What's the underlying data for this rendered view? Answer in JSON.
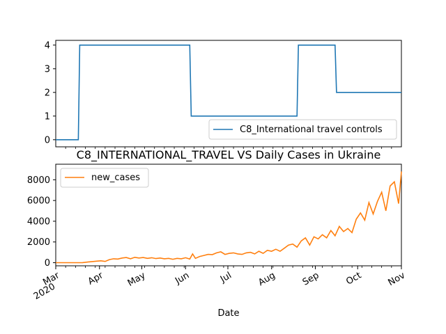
{
  "chart_data": [
    {
      "type": "line",
      "title": "",
      "xlabel": "",
      "ylabel": "",
      "ylim": [
        0,
        4
      ],
      "yticks": [
        "0",
        "1",
        "2",
        "3",
        "4"
      ],
      "grid": false,
      "legend_placement": "lower-right",
      "series": [
        {
          "name": "C8_International travel controls",
          "color": "#1f77b4",
          "x": [
            "2020-03-01",
            "2020-03-17",
            "2020-03-18",
            "2020-06-04",
            "2020-06-05",
            "2020-08-19",
            "2020-08-20",
            "2020-09-15",
            "2020-09-16",
            "2020-11-01"
          ],
          "values": [
            0,
            0,
            4,
            4,
            1,
            1,
            4,
            4,
            2,
            2
          ]
        }
      ]
    },
    {
      "type": "line",
      "title": "C8_INTERNATIONAL_TRAVEL VS Daily Cases in Ukraine",
      "xlabel": "Date",
      "ylabel": "",
      "ylim": [
        -300,
        9500
      ],
      "yticks": [
        "0",
        "2000",
        "4000",
        "6000",
        "8000"
      ],
      "xticks": [
        {
          "label": "Mar",
          "sublabel": "2020",
          "date": "2020-03-01"
        },
        {
          "label": "Apr",
          "date": "2020-04-01"
        },
        {
          "label": "May",
          "date": "2020-05-01"
        },
        {
          "label": "Jun",
          "date": "2020-06-01"
        },
        {
          "label": "Jul",
          "date": "2020-07-01"
        },
        {
          "label": "Aug",
          "date": "2020-08-01"
        },
        {
          "label": "Sep",
          "date": "2020-09-01"
        },
        {
          "label": "Oct",
          "date": "2020-10-01"
        },
        {
          "label": "Nov",
          "date": "2020-11-01"
        }
      ],
      "grid": false,
      "legend_placement": "upper-left",
      "series": [
        {
          "name": "new_cases",
          "color": "#ff7f0e",
          "x": [
            "2020-03-01",
            "2020-03-10",
            "2020-03-20",
            "2020-03-25",
            "2020-03-30",
            "2020-04-02",
            "2020-04-05",
            "2020-04-08",
            "2020-04-11",
            "2020-04-14",
            "2020-04-17",
            "2020-04-20",
            "2020-04-23",
            "2020-04-26",
            "2020-04-29",
            "2020-05-02",
            "2020-05-05",
            "2020-05-08",
            "2020-05-11",
            "2020-05-14",
            "2020-05-17",
            "2020-05-20",
            "2020-05-23",
            "2020-05-26",
            "2020-05-29",
            "2020-06-01",
            "2020-06-04",
            "2020-06-06",
            "2020-06-08",
            "2020-06-11",
            "2020-06-14",
            "2020-06-17",
            "2020-06-20",
            "2020-06-23",
            "2020-06-26",
            "2020-06-29",
            "2020-07-02",
            "2020-07-05",
            "2020-07-08",
            "2020-07-11",
            "2020-07-14",
            "2020-07-17",
            "2020-07-20",
            "2020-07-23",
            "2020-07-26",
            "2020-07-29",
            "2020-08-01",
            "2020-08-04",
            "2020-08-07",
            "2020-08-10",
            "2020-08-13",
            "2020-08-16",
            "2020-08-19",
            "2020-08-22",
            "2020-08-25",
            "2020-08-28",
            "2020-08-31",
            "2020-09-03",
            "2020-09-06",
            "2020-09-09",
            "2020-09-12",
            "2020-09-15",
            "2020-09-18",
            "2020-09-21",
            "2020-09-24",
            "2020-09-27",
            "2020-09-30",
            "2020-10-03",
            "2020-10-06",
            "2020-10-09",
            "2020-10-12",
            "2020-10-15",
            "2020-10-18",
            "2020-10-21",
            "2020-10-24",
            "2020-10-27",
            "2020-10-30",
            "2020-11-01"
          ],
          "values": [
            0,
            0,
            10,
            80,
            150,
            180,
            120,
            300,
            380,
            350,
            450,
            500,
            380,
            520,
            450,
            500,
            420,
            480,
            400,
            450,
            380,
            420,
            330,
            420,
            380,
            480,
            350,
            850,
            420,
            600,
            700,
            800,
            780,
            950,
            1050,
            800,
            900,
            950,
            850,
            800,
            950,
            1000,
            850,
            1100,
            900,
            1200,
            1100,
            1300,
            1100,
            1400,
            1700,
            1800,
            1500,
            2100,
            2400,
            1700,
            2500,
            2300,
            2700,
            2400,
            3100,
            2600,
            3500,
            3000,
            3300,
            2900,
            4200,
            4800,
            4100,
            5800,
            4700,
            5900,
            6800,
            5000,
            7400,
            7800,
            5700,
            8800
          ]
        }
      ]
    }
  ]
}
